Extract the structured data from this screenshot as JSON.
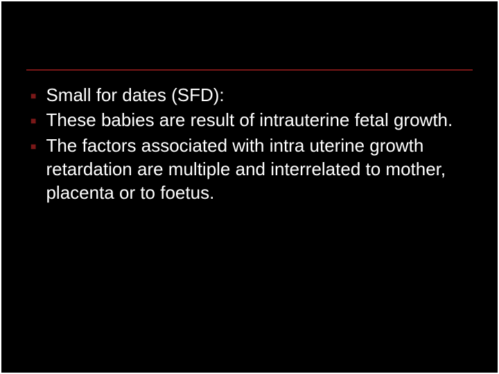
{
  "slide": {
    "background_color": "#000000",
    "border_color": "#ffffff",
    "divider_color": "#7a1818",
    "bullet_marker_color": "#7a1818",
    "text_color": "#ffffff",
    "font_family": "Arial",
    "body_fontsize": 26,
    "bullets": [
      "Small for dates (SFD):",
      "These babies are result of intrauterine fetal growth.",
      "The factors associated with intra uterine growth retardation are multiple and interrelated to mother, placenta or to foetus."
    ]
  }
}
